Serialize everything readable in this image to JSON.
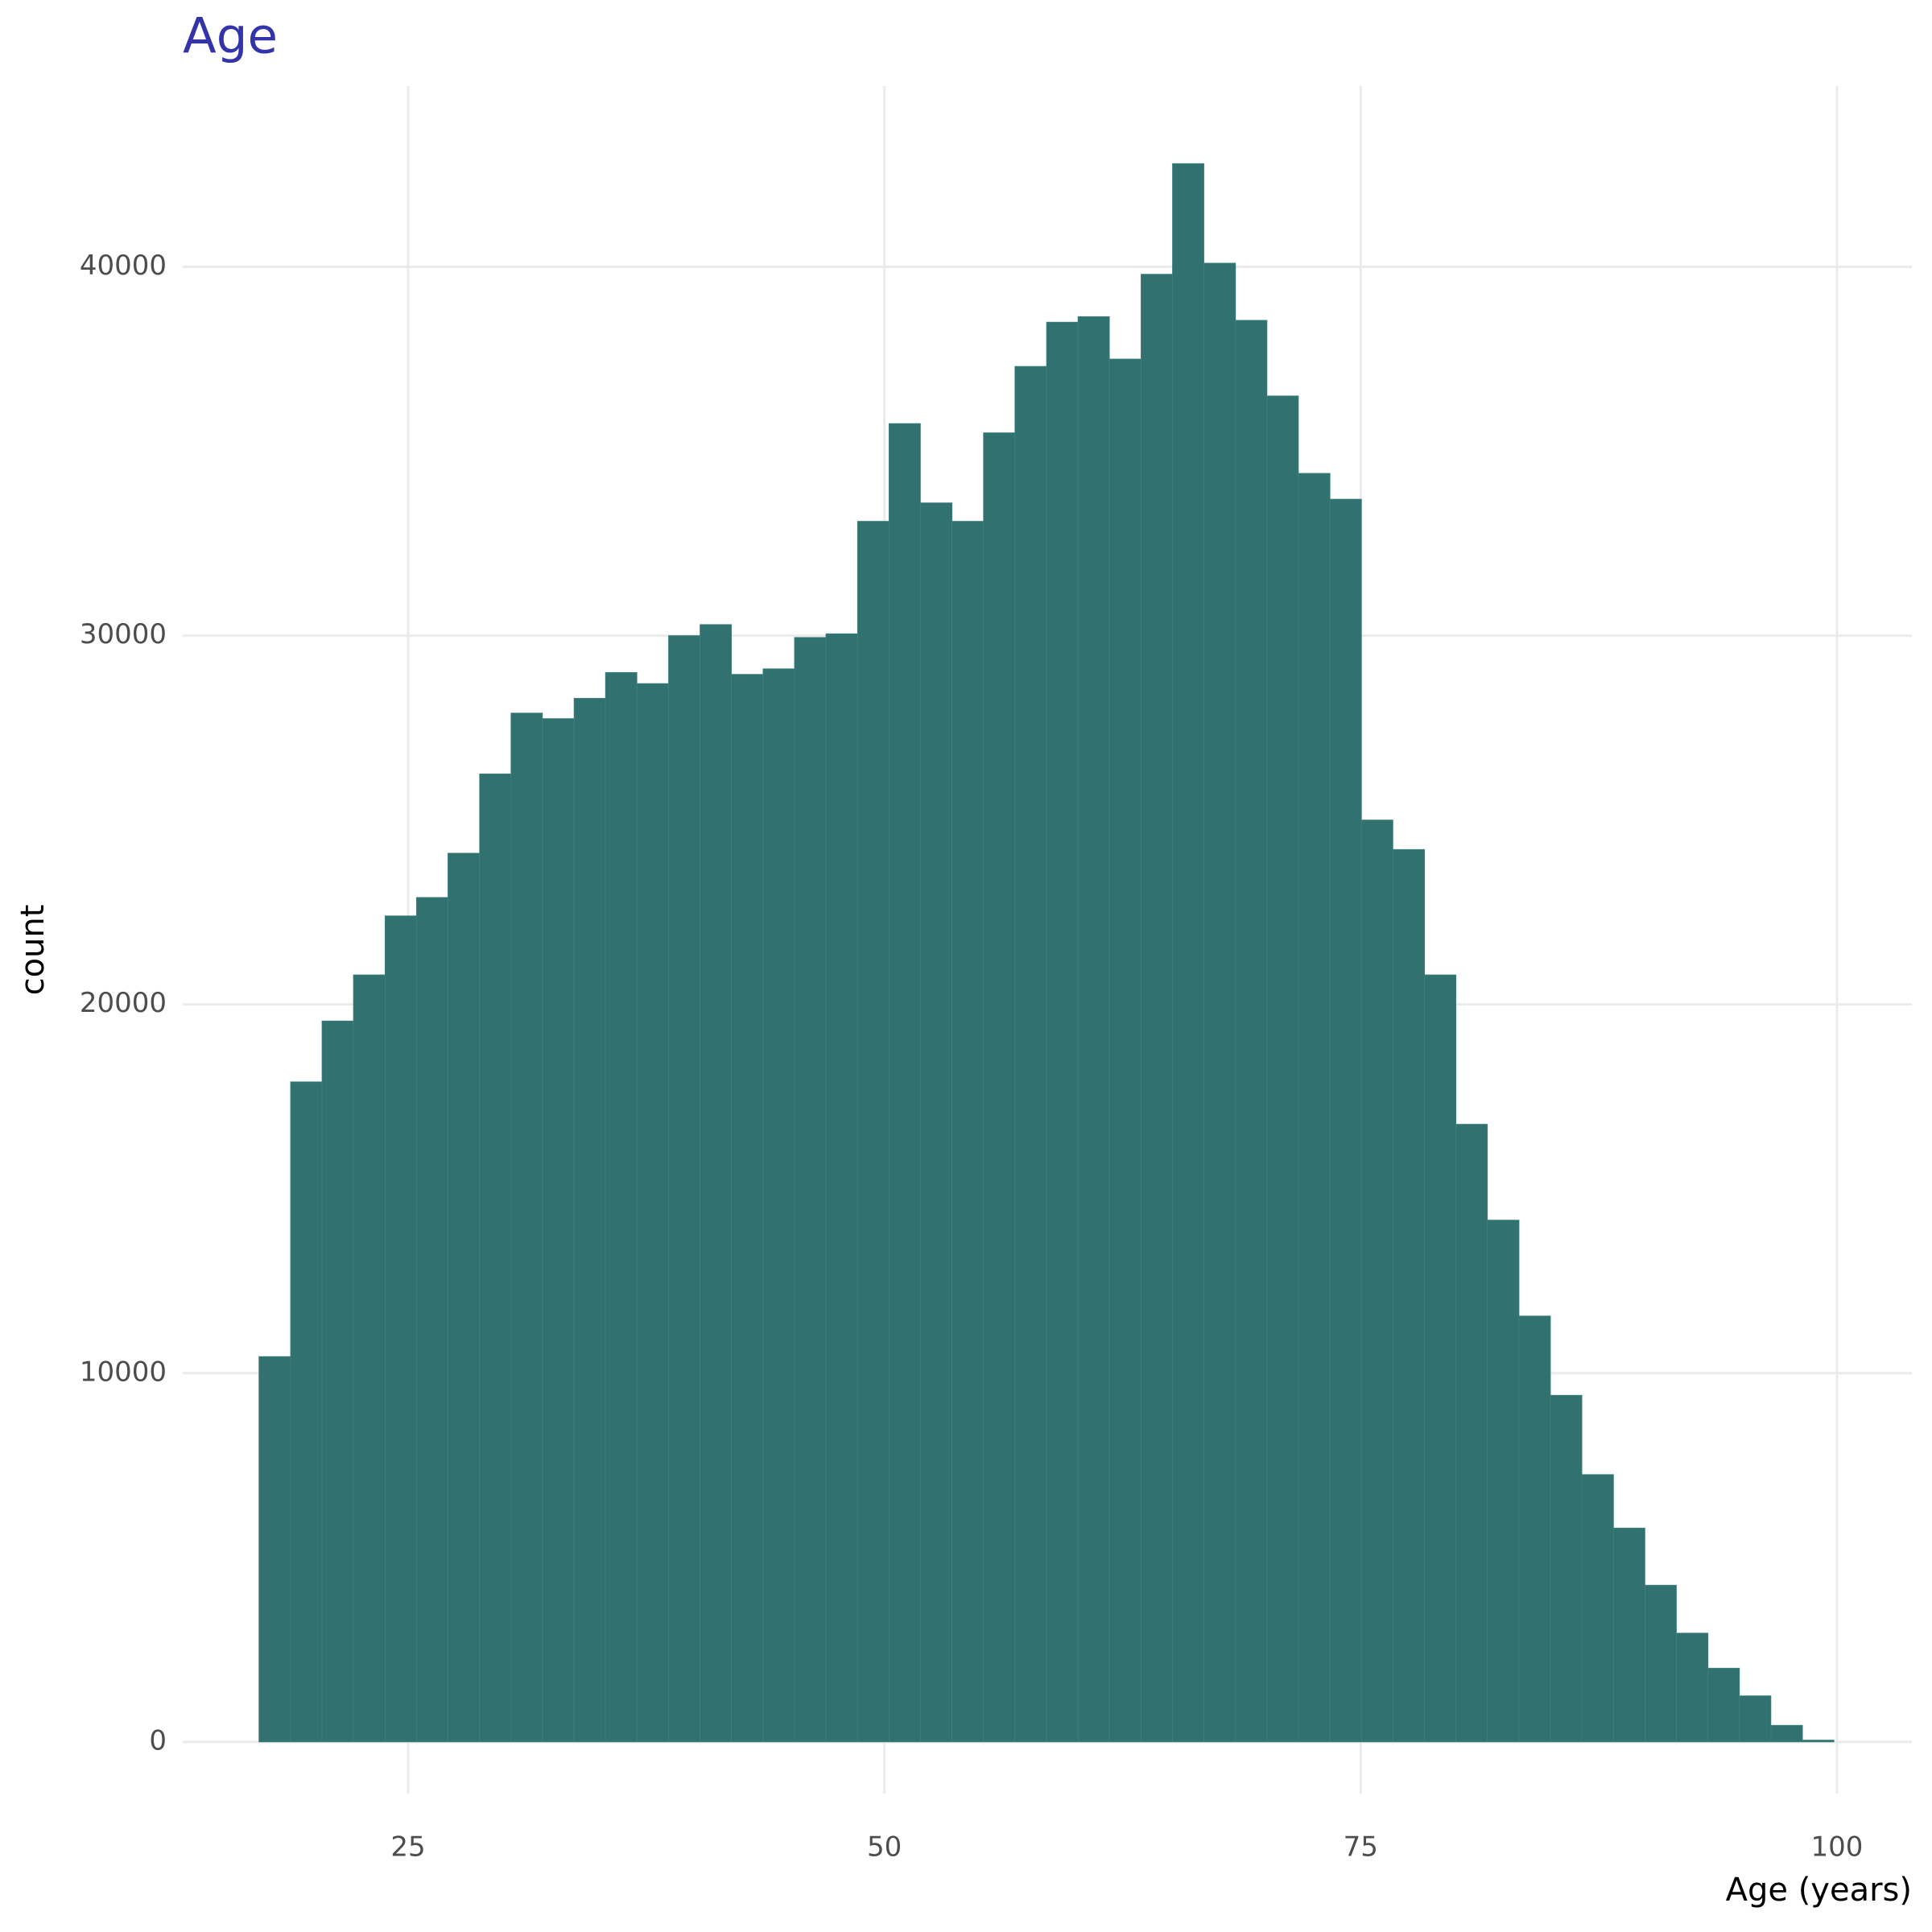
{
  "chart_data": {
    "type": "histogram",
    "title": "Age",
    "x_label": "Age (years)",
    "y_label": "count",
    "bins": [
      17.17,
      18.83,
      20.48,
      22.13,
      23.79,
      25.44,
      27.09,
      28.75,
      30.4,
      32.05,
      33.71,
      35.36,
      37.01,
      38.67,
      40.32,
      41.97,
      43.63,
      45.28,
      46.93,
      48.59,
      50.24,
      51.89,
      53.55,
      55.2,
      56.85,
      58.51,
      60.16,
      61.81,
      63.47,
      65.12,
      66.77,
      68.43,
      70.08,
      71.73,
      73.39,
      75.04,
      76.69,
      78.35,
      80.0,
      81.65,
      83.31,
      84.96,
      86.61,
      88.27,
      89.92,
      91.57,
      93.23,
      94.88,
      96.53,
      98.19,
      99.84
    ],
    "counts": [
      10450,
      17900,
      19550,
      20800,
      22400,
      22900,
      24100,
      26250,
      27900,
      27750,
      28300,
      29000,
      28700,
      30000,
      30300,
      28950,
      29100,
      29950,
      30050,
      33100,
      35750,
      33600,
      33100,
      35500,
      37300,
      38500,
      38650,
      37500,
      39800,
      42800,
      40100,
      38550,
      36500,
      34400,
      33700,
      25000,
      24200,
      20800,
      16750,
      14150,
      11550,
      9400,
      7250,
      5800,
      4250,
      2950,
      2000,
      1250,
      450,
      50
    ],
    "color": "#31716f",
    "xlim": [
      13.17,
      103.93
    ],
    "ylim": [
      -1400,
      44900
    ],
    "xticks": [
      25,
      50,
      75,
      100
    ],
    "yticks": [
      0,
      10000,
      20000,
      30000,
      40000
    ],
    "grid": true
  }
}
